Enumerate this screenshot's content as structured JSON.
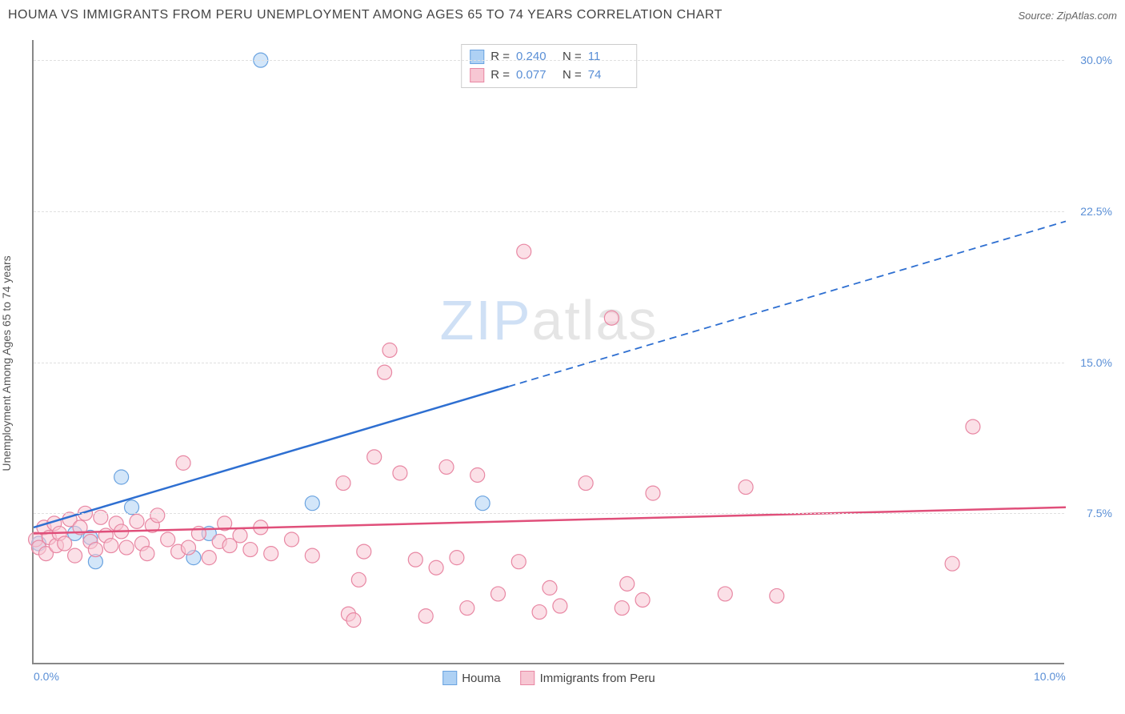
{
  "title": "HOUMA VS IMMIGRANTS FROM PERU UNEMPLOYMENT AMONG AGES 65 TO 74 YEARS CORRELATION CHART",
  "source": "Source: ZipAtlas.com",
  "y_axis_label": "Unemployment Among Ages 65 to 74 years",
  "watermark_zip": "ZIP",
  "watermark_atlas": "atlas",
  "chart": {
    "type": "scatter",
    "xlim": [
      0,
      10
    ],
    "ylim": [
      0,
      31
    ],
    "x_ticks": [
      {
        "pos": 0,
        "label": "0.0%"
      },
      {
        "pos": 10,
        "label": "10.0%"
      }
    ],
    "y_ticks": [
      {
        "pos": 7.5,
        "label": "7.5%"
      },
      {
        "pos": 15.0,
        "label": "15.0%"
      },
      {
        "pos": 22.5,
        "label": "22.5%"
      },
      {
        "pos": 30.0,
        "label": "30.0%"
      }
    ],
    "grid_color": "#e0e0e0",
    "background_color": "#ffffff",
    "series": [
      {
        "name": "Houma",
        "color_fill": "#aed1f4",
        "color_stroke": "#6aa3e0",
        "marker_radius": 9,
        "stats": {
          "r": "0.240",
          "n": "11"
        },
        "trend": {
          "x1": 0,
          "y1": 6.8,
          "x2": 10,
          "y2": 22.0,
          "solid_until_x": 4.6,
          "color": "#2e6fd1",
          "width": 2.5
        },
        "points": [
          [
            0.05,
            6.0
          ],
          [
            0.4,
            6.5
          ],
          [
            0.55,
            6.3
          ],
          [
            0.6,
            5.1
          ],
          [
            0.95,
            7.8
          ],
          [
            0.85,
            9.3
          ],
          [
            1.55,
            5.3
          ],
          [
            1.7,
            6.5
          ],
          [
            2.2,
            30.0
          ],
          [
            2.7,
            8.0
          ],
          [
            4.35,
            8.0
          ]
        ]
      },
      {
        "name": "Immigrants from Peru",
        "color_fill": "#f7c7d3",
        "color_stroke": "#e887a3",
        "marker_radius": 9,
        "stats": {
          "r": "0.077",
          "n": "74"
        },
        "trend": {
          "x1": 0,
          "y1": 6.5,
          "x2": 10,
          "y2": 7.8,
          "solid_until_x": 10,
          "color": "#e04f7a",
          "width": 2.5
        },
        "points": [
          [
            0.02,
            6.2
          ],
          [
            0.05,
            5.8
          ],
          [
            0.1,
            6.8
          ],
          [
            0.12,
            5.5
          ],
          [
            0.15,
            6.3
          ],
          [
            0.2,
            7.0
          ],
          [
            0.22,
            5.9
          ],
          [
            0.25,
            6.5
          ],
          [
            0.3,
            6.0
          ],
          [
            0.35,
            7.2
          ],
          [
            0.4,
            5.4
          ],
          [
            0.45,
            6.8
          ],
          [
            0.5,
            7.5
          ],
          [
            0.55,
            6.1
          ],
          [
            0.6,
            5.7
          ],
          [
            0.65,
            7.3
          ],
          [
            0.7,
            6.4
          ],
          [
            0.75,
            5.9
          ],
          [
            0.8,
            7.0
          ],
          [
            0.85,
            6.6
          ],
          [
            0.9,
            5.8
          ],
          [
            1.0,
            7.1
          ],
          [
            1.05,
            6.0
          ],
          [
            1.1,
            5.5
          ],
          [
            1.15,
            6.9
          ],
          [
            1.2,
            7.4
          ],
          [
            1.3,
            6.2
          ],
          [
            1.4,
            5.6
          ],
          [
            1.45,
            10.0
          ],
          [
            1.5,
            5.8
          ],
          [
            1.6,
            6.5
          ],
          [
            1.7,
            5.3
          ],
          [
            1.8,
            6.1
          ],
          [
            1.85,
            7.0
          ],
          [
            1.9,
            5.9
          ],
          [
            2.0,
            6.4
          ],
          [
            2.1,
            5.7
          ],
          [
            2.2,
            6.8
          ],
          [
            2.3,
            5.5
          ],
          [
            2.5,
            6.2
          ],
          [
            2.7,
            5.4
          ],
          [
            3.0,
            9.0
          ],
          [
            3.05,
            2.5
          ],
          [
            3.1,
            2.2
          ],
          [
            3.15,
            4.2
          ],
          [
            3.2,
            5.6
          ],
          [
            3.3,
            10.3
          ],
          [
            3.4,
            14.5
          ],
          [
            3.45,
            15.6
          ],
          [
            3.55,
            9.5
          ],
          [
            3.7,
            5.2
          ],
          [
            3.8,
            2.4
          ],
          [
            3.9,
            4.8
          ],
          [
            4.0,
            9.8
          ],
          [
            4.1,
            5.3
          ],
          [
            4.2,
            2.8
          ],
          [
            4.3,
            9.4
          ],
          [
            4.5,
            3.5
          ],
          [
            4.7,
            5.1
          ],
          [
            4.75,
            20.5
          ],
          [
            4.9,
            2.6
          ],
          [
            5.0,
            3.8
          ],
          [
            5.1,
            2.9
          ],
          [
            5.35,
            9.0
          ],
          [
            5.6,
            17.2
          ],
          [
            5.7,
            2.8
          ],
          [
            5.75,
            4.0
          ],
          [
            5.9,
            3.2
          ],
          [
            6.0,
            8.5
          ],
          [
            6.7,
            3.5
          ],
          [
            6.9,
            8.8
          ],
          [
            7.2,
            3.4
          ],
          [
            8.9,
            5.0
          ],
          [
            9.1,
            11.8
          ]
        ]
      }
    ],
    "legend_items": [
      {
        "label": "Houma",
        "fill": "#aed1f4",
        "stroke": "#6aa3e0"
      },
      {
        "label": "Immigrants from Peru",
        "fill": "#f7c7d3",
        "stroke": "#e887a3"
      }
    ]
  }
}
